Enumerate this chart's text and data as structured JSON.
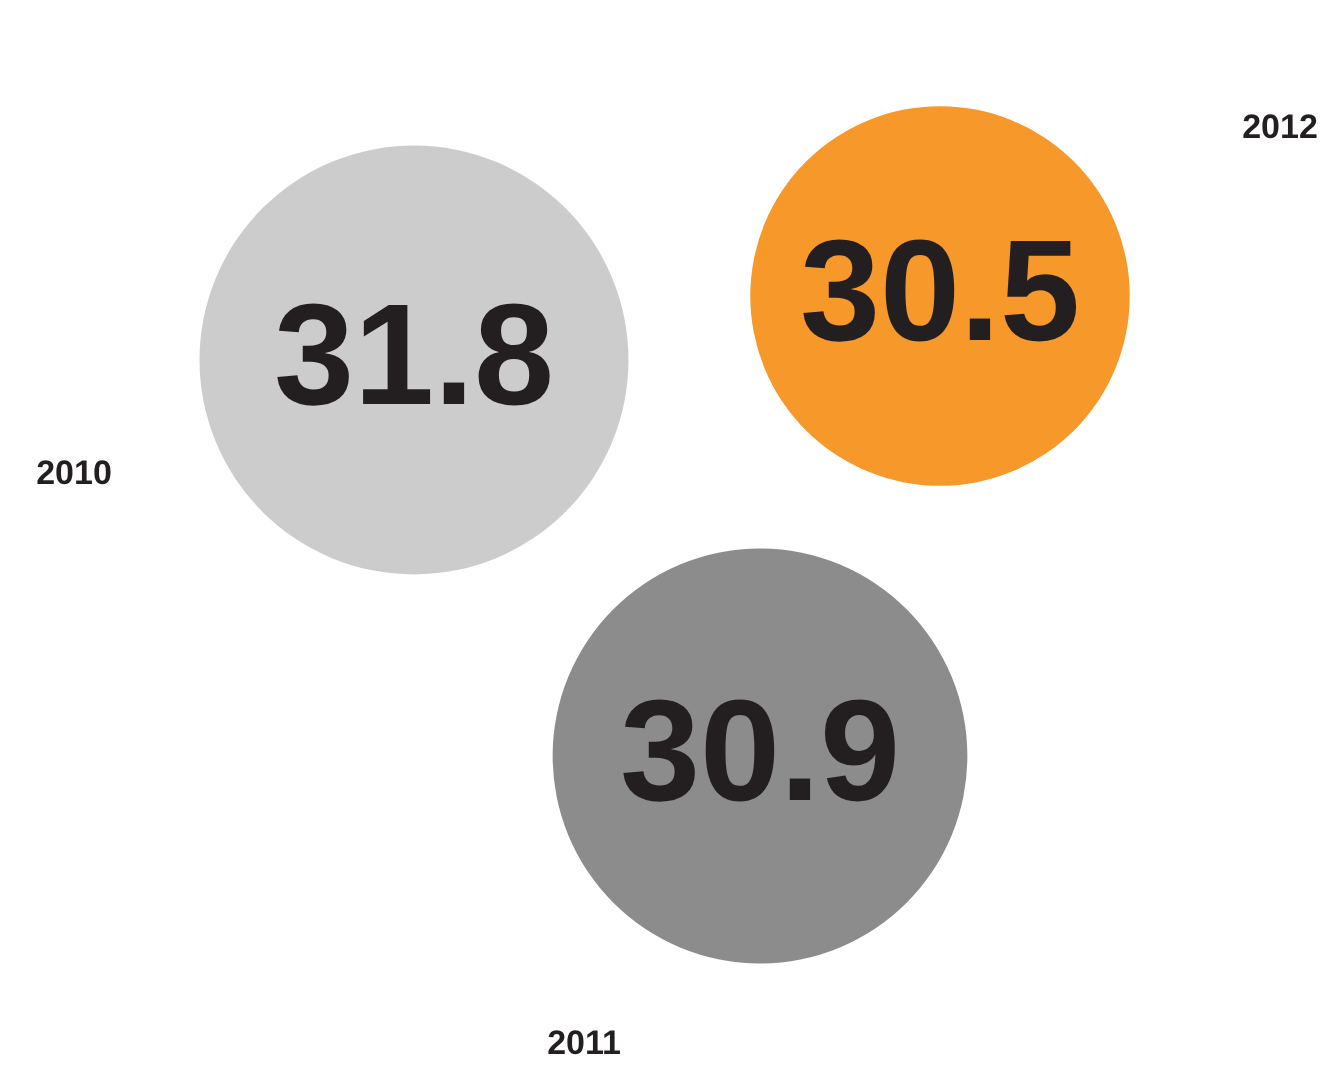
{
  "chart_data": {
    "type": "other",
    "categories": [
      "2010",
      "2011",
      "2012"
    ],
    "values": [
      31.8,
      30.9,
      30.5
    ],
    "colors": [
      "#cccccc",
      "#8c8c8c",
      "#f7982a"
    ],
    "data_labels": true
  }
}
